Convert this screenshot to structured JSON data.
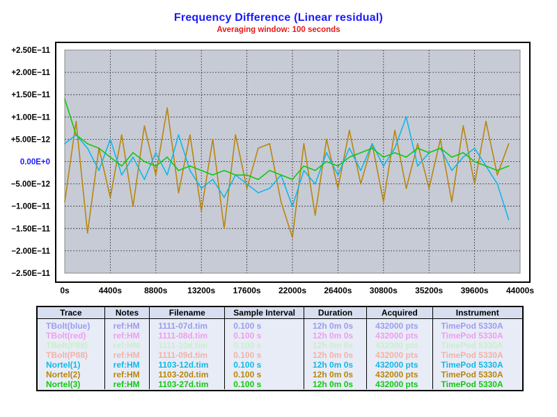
{
  "title": "Frequency Difference  (Linear residual)",
  "subtitle": "Averaging window: 100 seconds",
  "colors": {
    "plot_bg": "#c7cbd6",
    "title": "#1a1aff",
    "subtitle": "#e81818",
    "zero_label": "#1a1aff"
  },
  "chart_data": {
    "type": "line",
    "title": "Frequency Difference  (Linear residual)",
    "subtitle": "Averaging window: 100 seconds",
    "xlabel": "",
    "ylabel": "",
    "xlim": [
      0,
      44000
    ],
    "ylim": [
      -2.5e-11,
      2.5e-11
    ],
    "grid": true,
    "xticks": [
      "0s",
      "4400s",
      "8800s",
      "13200s",
      "17600s",
      "22000s",
      "26400s",
      "30800s",
      "35200s",
      "39600s",
      "44000s"
    ],
    "yticks": [
      "+2.50E−11",
      "+2.00E−11",
      "+1.50E−11",
      "+1.00E−11",
      "+5.00E−12",
      "0.00E+0",
      "−5.00E−12",
      "−1.00E−11",
      "−1.50E−11",
      "−2.00E−11",
      "−2.50E−11"
    ],
    "series": [
      {
        "name": "Nortel(2)",
        "color": "#b8860b",
        "x": [
          0,
          1100,
          2200,
          3300,
          4400,
          5500,
          6600,
          7700,
          8800,
          9900,
          11000,
          12100,
          13200,
          14300,
          15400,
          16500,
          17600,
          18700,
          19800,
          20900,
          22000,
          23100,
          24200,
          25300,
          26400,
          27500,
          28600,
          29700,
          30800,
          31900,
          33000,
          34100,
          35200,
          36300,
          37400,
          38500,
          39600,
          40700,
          41800,
          42900
        ],
        "y": [
          -9e-12,
          9e-12,
          -1.6e-11,
          3e-12,
          -8e-12,
          6e-12,
          -1e-11,
          8e-12,
          -3e-12,
          1.2e-11,
          -7e-12,
          6e-12,
          -1.1e-11,
          5e-12,
          -1.5e-11,
          6e-12,
          -6e-12,
          3e-12,
          4e-12,
          -9e-12,
          -1.7e-11,
          4e-12,
          -1.2e-11,
          5e-12,
          -6e-12,
          7e-12,
          -5e-12,
          4e-12,
          -9e-12,
          7e-12,
          -6e-12,
          4e-12,
          -6e-12,
          5e-12,
          -9e-12,
          8e-12,
          -5e-12,
          9e-12,
          -3e-12,
          4e-12
        ]
      },
      {
        "name": "Nortel(1)",
        "color": "#10b8e8",
        "x": [
          0,
          1100,
          2200,
          3300,
          4400,
          5500,
          6600,
          7700,
          8800,
          9900,
          11000,
          12100,
          13200,
          14300,
          15400,
          16500,
          17600,
          18700,
          19800,
          20900,
          22000,
          23100,
          24200,
          25300,
          26400,
          27500,
          28600,
          29700,
          30800,
          31900,
          33000,
          34100,
          35200,
          36300,
          37400,
          38500,
          39600,
          40700,
          41800,
          42900
        ],
        "y": [
          4e-12,
          6e-12,
          3e-12,
          -2e-12,
          5e-12,
          -3e-12,
          1e-12,
          -4e-12,
          2e-12,
          -3e-12,
          6e-12,
          -2e-12,
          -6e-12,
          -4e-12,
          -8e-12,
          -3e-12,
          -5e-12,
          -7e-12,
          -6e-12,
          -3e-12,
          -1e-11,
          -2e-12,
          -5e-12,
          2e-12,
          -3e-12,
          3e-12,
          -2e-12,
          4e-12,
          -1e-12,
          3e-12,
          1e-11,
          -1e-12,
          2e-12,
          3e-12,
          -2e-12,
          1e-12,
          3e-12,
          -1e-12,
          -5e-12,
          -1.3e-11
        ]
      },
      {
        "name": "Nortel(3)",
        "color": "#10c810",
        "x": [
          0,
          1100,
          2200,
          3300,
          4400,
          5500,
          6600,
          7700,
          8800,
          9900,
          11000,
          12100,
          13200,
          14300,
          15400,
          16500,
          17600,
          18700,
          19800,
          20900,
          22000,
          23100,
          24200,
          25300,
          26400,
          27500,
          28600,
          29700,
          30800,
          31900,
          33000,
          34100,
          35200,
          36300,
          37400,
          38500,
          39600,
          40700,
          41800,
          42900
        ],
        "y": [
          1.4e-11,
          6e-12,
          4e-12,
          3e-12,
          1e-12,
          -1e-12,
          2e-12,
          0,
          -1e-12,
          1e-12,
          -2e-12,
          -1e-12,
          -2e-12,
          -3e-12,
          -2e-12,
          -3e-12,
          -3e-12,
          -4e-12,
          -2e-12,
          -3e-12,
          -4e-12,
          -1e-12,
          -2e-12,
          0,
          -1e-12,
          1e-12,
          2e-12,
          3e-12,
          1e-12,
          2e-12,
          1e-12,
          3e-12,
          2e-12,
          3e-12,
          1e-12,
          2e-12,
          0,
          -1e-12,
          -2e-12,
          -1e-12
        ]
      }
    ]
  },
  "legend": {
    "headers": [
      "Trace",
      "Notes",
      "Filename",
      "Sample Interval",
      "Duration",
      "Acquired",
      "Instrument"
    ],
    "rows": [
      {
        "color": "#9c9cf0",
        "cells": [
          "TBolt(blue)",
          "ref:HM",
          "1111-07d.tim",
          "0.100 s",
          "12h 0m 0s",
          "432000 pts",
          "TimePod 5330A"
        ]
      },
      {
        "color": "#f09cf0",
        "cells": [
          "TBolt(red)",
          "ref:HM",
          "1111-08d.tim",
          "0.100 s",
          "12h 0m 0s",
          "432000 pts",
          "TimePod 5330A"
        ]
      },
      {
        "color": "#c8f0c8",
        "cells": [
          "TBolt(P88)",
          "ref:HM",
          "1111-10d.tim",
          "0.100 s",
          "12h 0m 0s",
          "432000 pts",
          "TimePod 5330A"
        ]
      },
      {
        "color": "#f0b4a8",
        "cells": [
          "TBolt(P88)",
          "ref:HM",
          "1111-09d.tim",
          "0.100 s",
          "12h 0m 0s",
          "432000 pts",
          "TimePod 5330A"
        ]
      },
      {
        "color": "#10b8e8",
        "cells": [
          "Nortel(1)",
          "ref:HM",
          "1103-12d.tim",
          "0.100 s",
          "12h 0m 0s",
          "432000 pts",
          "TimePod 5330A"
        ]
      },
      {
        "color": "#b8860b",
        "cells": [
          "Nortel(2)",
          "ref:HM",
          "1103-20d.tim",
          "0.100 s",
          "12h 0m 0s",
          "432000 pts",
          "TimePod 5330A"
        ]
      },
      {
        "color": "#10c810",
        "cells": [
          "Nortel(3)",
          "ref:HM",
          "1103-27d.tim",
          "0.100 s",
          "12h 0m 0s",
          "432000 pts",
          "TimePod 5330A"
        ]
      }
    ]
  }
}
